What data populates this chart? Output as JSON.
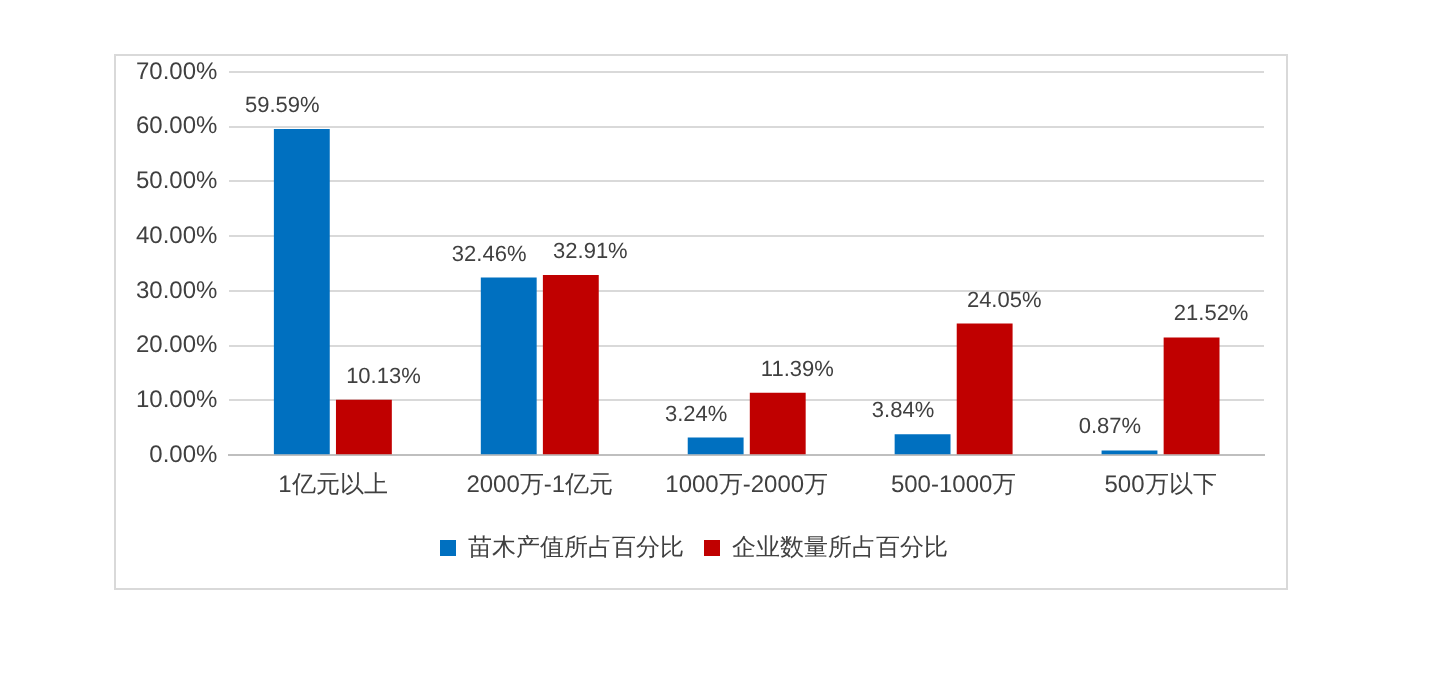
{
  "chart_data": {
    "type": "bar",
    "categories": [
      "1亿元以上",
      "2000万-1亿元",
      "1000万-2000万",
      "500-1000万",
      "500万以下"
    ],
    "series": [
      {
        "name": "苗木产值所占百分比",
        "color": "#0070c0",
        "values": [
          59.59,
          32.46,
          3.24,
          3.84,
          0.87
        ],
        "value_labels": [
          "59.59%",
          "32.46%",
          "3.24%",
          "3.84%",
          "0.87%"
        ]
      },
      {
        "name": "企业数量所占百分比",
        "color": "#c00000",
        "values": [
          10.13,
          32.91,
          11.39,
          24.05,
          21.52
        ],
        "value_labels": [
          "10.13%",
          "32.91%",
          "11.39%",
          "24.05%",
          "21.52%"
        ]
      }
    ],
    "ylim": [
      0,
      70
    ],
    "yticks": [
      {
        "value": 0,
        "label": "0.00%"
      },
      {
        "value": 10,
        "label": "10.00%"
      },
      {
        "value": 20,
        "label": "20.00%"
      },
      {
        "value": 30,
        "label": "30.00%"
      },
      {
        "value": 40,
        "label": "40.00%"
      },
      {
        "value": 50,
        "label": "50.00%"
      },
      {
        "value": 60,
        "label": "60.00%"
      },
      {
        "value": 70,
        "label": "70.00%"
      }
    ],
    "grid": "y",
    "legend": "bottom"
  }
}
